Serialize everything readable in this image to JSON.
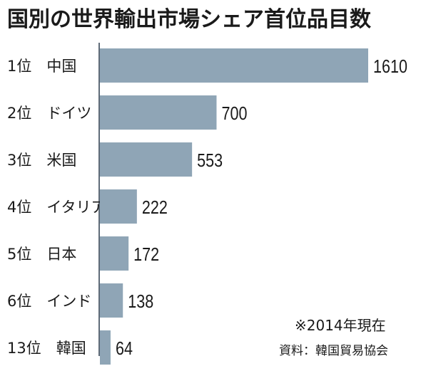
{
  "title": "国別の世界輸出市場シェア首位品目数",
  "note": "※2014年現在",
  "source": "資料：韓国貿易協会",
  "colors": {
    "bar": "#8fa5b6",
    "axis": "#5f6b78",
    "text": "#1a1a1a"
  },
  "chart_data": {
    "type": "bar",
    "orientation": "horizontal",
    "title": "国別の世界輸出市場シェア首位品目数",
    "categories": [
      "1位　中国",
      "2位　ドイツ",
      "3位　米国",
      "4位　イタリア",
      "5位　日本",
      "6位　インド",
      "13位　韓国"
    ],
    "values": [
      1610,
      700,
      553,
      222,
      172,
      138,
      64
    ],
    "data_labels": [
      "1610",
      "700",
      "553",
      "222",
      "172",
      "138",
      "64"
    ],
    "xlim": [
      0,
      1610
    ],
    "grid": false,
    "legend": "none"
  }
}
